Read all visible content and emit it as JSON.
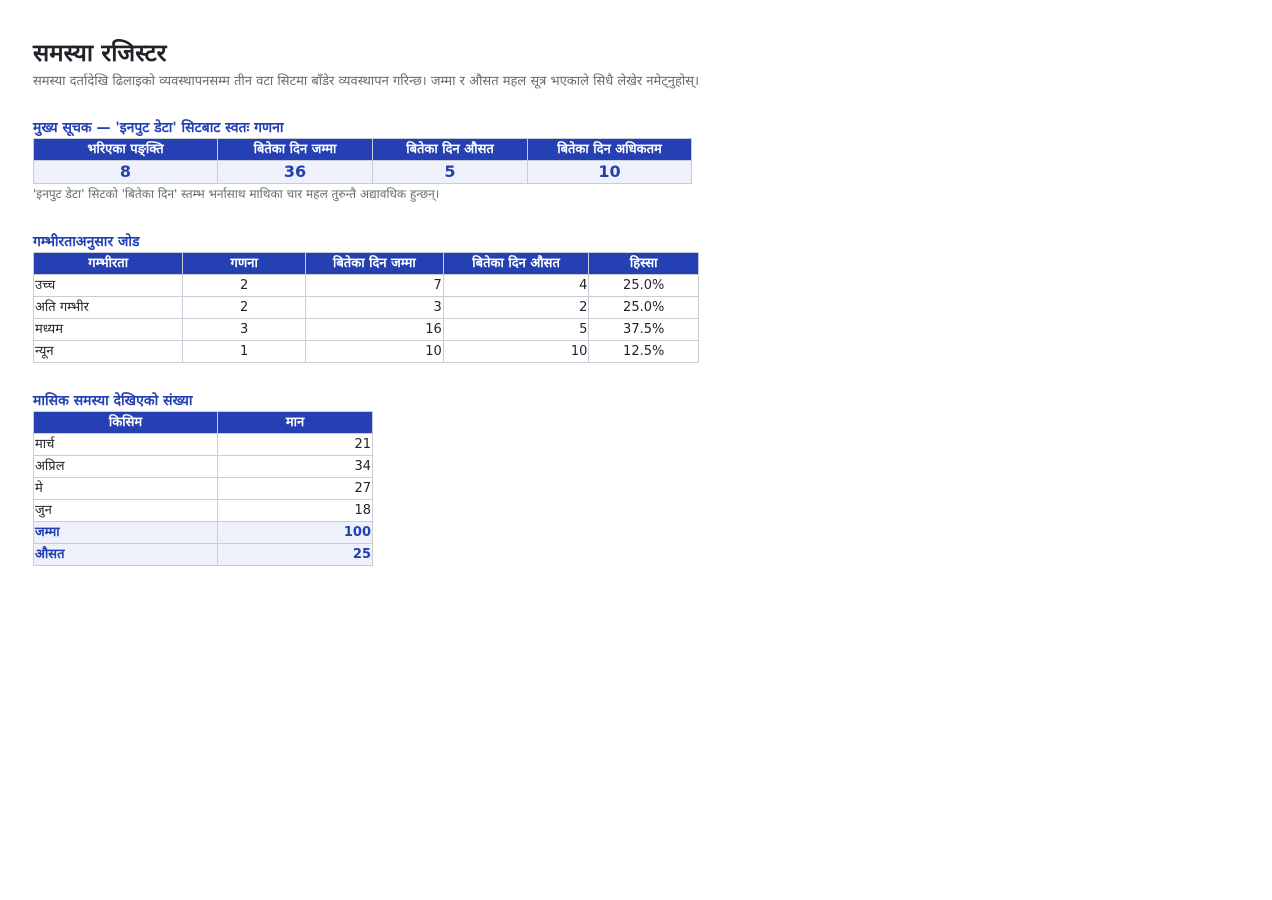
{
  "header": {
    "title": "समस्या रजिस्टर",
    "subtitle": "समस्या दर्तादेखि ढिलाइको व्यवस्थापनसम्म तीन वटा सिटमा बाँडेर व्यवस्थापन गरिन्छ। जम्मा र औसत महल सूत्र भएकाले सिधै लेखेर नमेट्नुहोस्।"
  },
  "kpi": {
    "title": "मुख्य सूचक — 'इनपुट डेटा' सिटबाट स्वतः गणना",
    "headers": [
      "भरिएका पङ्क्ति",
      "बितेका दिन जम्मा",
      "बितेका दिन औसत",
      "बितेका दिन अधिकतम"
    ],
    "values": [
      "8",
      "36",
      "5",
      "10"
    ],
    "note": "'इनपुट डेटा' सिटको 'बितेका दिन' स्तम्भ भर्नासाथ माथिका चार महल तुरुन्तै अद्यावधिक हुन्छन्।"
  },
  "severity": {
    "title": "गम्भीरताअनुसार जोड",
    "headers": [
      "गम्भीरता",
      "गणना",
      "बितेका दिन जम्मा",
      "बितेका दिन औसत",
      "हिस्सा"
    ],
    "rows": [
      [
        "उच्च",
        "2",
        "7",
        "4",
        "25.0%"
      ],
      [
        "अति गम्भीर",
        "2",
        "3",
        "2",
        "25.0%"
      ],
      [
        "मध्यम",
        "3",
        "16",
        "5",
        "37.5%"
      ],
      [
        "न्यून",
        "1",
        "10",
        "10",
        "12.5%"
      ]
    ]
  },
  "monthly": {
    "title": "मासिक समस्या देखिएको संख्या",
    "headers": [
      "किसिम",
      "मान"
    ],
    "rows": [
      [
        "मार्च",
        "21"
      ],
      [
        "अप्रिल",
        "34"
      ],
      [
        "मे",
        "27"
      ],
      [
        "जुन",
        "18"
      ]
    ],
    "totals": [
      [
        "जम्मा",
        "100"
      ],
      [
        "औसत",
        "25"
      ]
    ]
  },
  "colors": {
    "accent": "#2440b2",
    "total_bg": "#eef1fa"
  }
}
